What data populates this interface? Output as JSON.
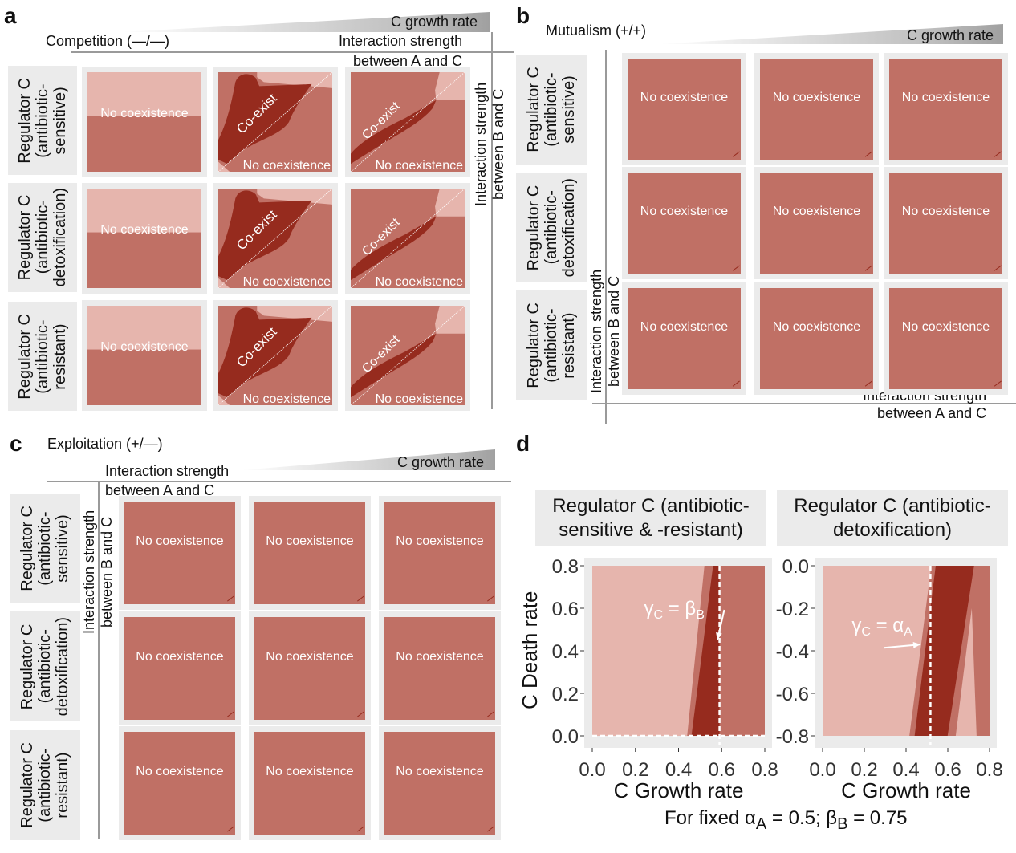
{
  "colors": {
    "light": "#e6b5ad",
    "medium": "#c07065",
    "dark": "#962b1e",
    "panel_bg": "#ebebeb"
  },
  "panel_a": {
    "label": "a",
    "title": "Competition (—/—)",
    "growth": "C growth rate",
    "x_axis": [
      "Interaction strength",
      "between A and C"
    ],
    "y_axis": [
      "Interaction strength",
      "between B and C"
    ],
    "rows": [
      {
        "label": [
          "Regulator C",
          "(antibiotic-",
          "sensitive)"
        ]
      },
      {
        "label": [
          "Regulator C",
          "(antibiotic-",
          "detoxification)"
        ]
      },
      {
        "label": [
          "Regulator C",
          "(antibiotic-",
          "resistant)"
        ]
      }
    ],
    "tiles": [
      [
        {
          "kind": "split",
          "text": "No coexistence"
        },
        {
          "kind": "coexA",
          "coexist": "Co-exist",
          "text": "No coexistence"
        },
        {
          "kind": "coexB",
          "coexist": "Co-exist",
          "text": "No coexistence"
        }
      ],
      [
        {
          "kind": "split",
          "text": "No coexistence"
        },
        {
          "kind": "coexA",
          "coexist": "Co-exist",
          "text": "No coexistence"
        },
        {
          "kind": "coexB",
          "coexist": "Co-exist",
          "text": "No coexistence"
        }
      ],
      [
        {
          "kind": "split",
          "text": "No coexistence"
        },
        {
          "kind": "coexA",
          "coexist": "Co-exist",
          "text": "No coexistence"
        },
        {
          "kind": "coexB",
          "coexist": "Co-exist",
          "text": "No coexistence"
        }
      ]
    ]
  },
  "panel_b": {
    "label": "b",
    "title": "Mutualism (+/+)",
    "growth": "C growth rate",
    "x_axis": [
      "Interaction strength",
      "between A and C"
    ],
    "y_axis": [
      "Interaction strength",
      "between B and C"
    ],
    "rows": [
      {
        "label": [
          "Regulator C",
          "(antibiotic-",
          "sensitive)"
        ]
      },
      {
        "label": [
          "Regulator C",
          "(antibiotic-",
          "detoxification)"
        ]
      },
      {
        "label": [
          "Regulator C",
          "(antibiotic-",
          "resistant)"
        ]
      }
    ],
    "tiles": [
      [
        {
          "kind": "none",
          "text": "No coexistence"
        },
        {
          "kind": "none",
          "text": "No coexistence"
        },
        {
          "kind": "none",
          "text": "No coexistence"
        }
      ],
      [
        {
          "kind": "none",
          "text": "No coexistence"
        },
        {
          "kind": "none",
          "text": "No coexistence"
        },
        {
          "kind": "none",
          "text": "No coexistence"
        }
      ],
      [
        {
          "kind": "none",
          "text": "No coexistence"
        },
        {
          "kind": "none",
          "text": "No coexistence"
        },
        {
          "kind": "none",
          "text": "No coexistence"
        }
      ]
    ]
  },
  "panel_c": {
    "label": "c",
    "title": "Exploitation (+/—)",
    "growth": "C growth rate",
    "x_axis": [
      "Interaction strength",
      "between A and C"
    ],
    "y_axis": [
      "Interaction strength",
      "between B and C"
    ],
    "rows": [
      {
        "label": [
          "Regulator C",
          "(antibiotic-",
          "sensitive)"
        ]
      },
      {
        "label": [
          "Regulator C",
          "(antibiotic-",
          "detoxification)"
        ]
      },
      {
        "label": [
          "Regulator C",
          "(antibiotic-",
          "resistant)"
        ]
      }
    ],
    "tiles": [
      [
        {
          "kind": "none",
          "text": "No coexistence"
        },
        {
          "kind": "none",
          "text": "No coexistence"
        },
        {
          "kind": "none",
          "text": "No coexistence"
        }
      ],
      [
        {
          "kind": "none",
          "text": "No coexistence"
        },
        {
          "kind": "none",
          "text": "No coexistence"
        },
        {
          "kind": "none",
          "text": "No coexistence"
        }
      ],
      [
        {
          "kind": "none",
          "text": "No coexistence"
        },
        {
          "kind": "none",
          "text": "No coexistence"
        },
        {
          "kind": "none",
          "text": "No coexistence"
        }
      ]
    ]
  },
  "panel_d": {
    "label": "d",
    "ylabel": "C Death rate",
    "caption": {
      "pre": "For fixed α",
      "sub1": "A",
      "mid": " = 0.5; β",
      "sub2": "B",
      "post": " = 0.75"
    }
  },
  "chart_data": [
    {
      "type": "heatmap",
      "title": [
        "Regulator C (antibiotic-",
        "sensitive & -resistant)"
      ],
      "xlabel": "C Growth rate",
      "ylabel": "C Death rate",
      "xlim": [
        0,
        0.8
      ],
      "ylim": [
        0,
        0.8
      ],
      "xticks": [
        "0.0",
        "0.2",
        "0.4",
        "0.6",
        "0.8"
      ],
      "xtick_values": [
        0,
        0.2,
        0.4,
        0.6,
        0.8
      ],
      "yticks": [
        "0.0",
        "0.2",
        "0.4",
        "0.6",
        "0.8"
      ],
      "ytick_values": [
        0,
        0.2,
        0.4,
        0.6,
        0.8
      ],
      "background": "light",
      "regions": [
        {
          "color": "medium",
          "points": [
            [
              0.44,
              0
            ],
            [
              0.52,
              0.8
            ],
            [
              0.8,
              0.8
            ],
            [
              0.8,
              0
            ]
          ]
        },
        {
          "color": "dark",
          "points": [
            [
              0.46,
              0
            ],
            [
              0.56,
              0.8
            ],
            [
              0.59,
              0.8
            ],
            [
              0.59,
              0
            ]
          ]
        }
      ],
      "vlines": [
        0.59
      ],
      "hlines": [
        0
      ],
      "annotation": {
        "text": "γ",
        "sub1": "C",
        "mid": " = β",
        "sub2": "B",
        "at": [
          0.24,
          0.6
        ],
        "arrow_to": [
          0.58,
          0.45
        ]
      }
    },
    {
      "type": "heatmap",
      "title": [
        "Regulator C (antibiotic-",
        "detoxification)"
      ],
      "xlabel": "C Growth rate",
      "ylabel": "",
      "xlim": [
        0,
        0.8
      ],
      "ylim": [
        -0.8,
        0
      ],
      "xticks": [
        "0.0",
        "0.2",
        "0.4",
        "0.6",
        "0.8"
      ],
      "xtick_values": [
        0,
        0.2,
        0.4,
        0.6,
        0.8
      ],
      "yticks": [
        "0.0",
        "-0.2",
        "-0.4",
        "-0.6",
        "-0.8"
      ],
      "ytick_values": [
        0,
        -0.2,
        -0.4,
        -0.6,
        -0.8
      ],
      "background": "light",
      "regions": [
        {
          "color": "medium",
          "points": [
            [
              0.416,
              -0.8
            ],
            [
              0.521,
              0
            ],
            [
              0.8,
              0
            ],
            [
              0.8,
              -0.8
            ]
          ]
        },
        {
          "color": "dark",
          "points": [
            [
              0.441,
              -0.8
            ],
            [
              0.542,
              0
            ],
            [
              0.726,
              0
            ],
            [
              0.599,
              -0.8
            ]
          ]
        },
        {
          "color": "light",
          "points": [
            [
              0.638,
              -0.8
            ],
            [
              0.715,
              -0.2
            ],
            [
              0.738,
              -0.8
            ]
          ]
        }
      ],
      "vlines": [
        0.517
      ],
      "hlines": [],
      "annotation": {
        "text": "γ",
        "sub1": "C",
        "mid": " = α",
        "sub2": "A",
        "at": [
          0.14,
          -0.28
        ],
        "arrow_to": [
          0.47,
          -0.37
        ]
      }
    }
  ]
}
